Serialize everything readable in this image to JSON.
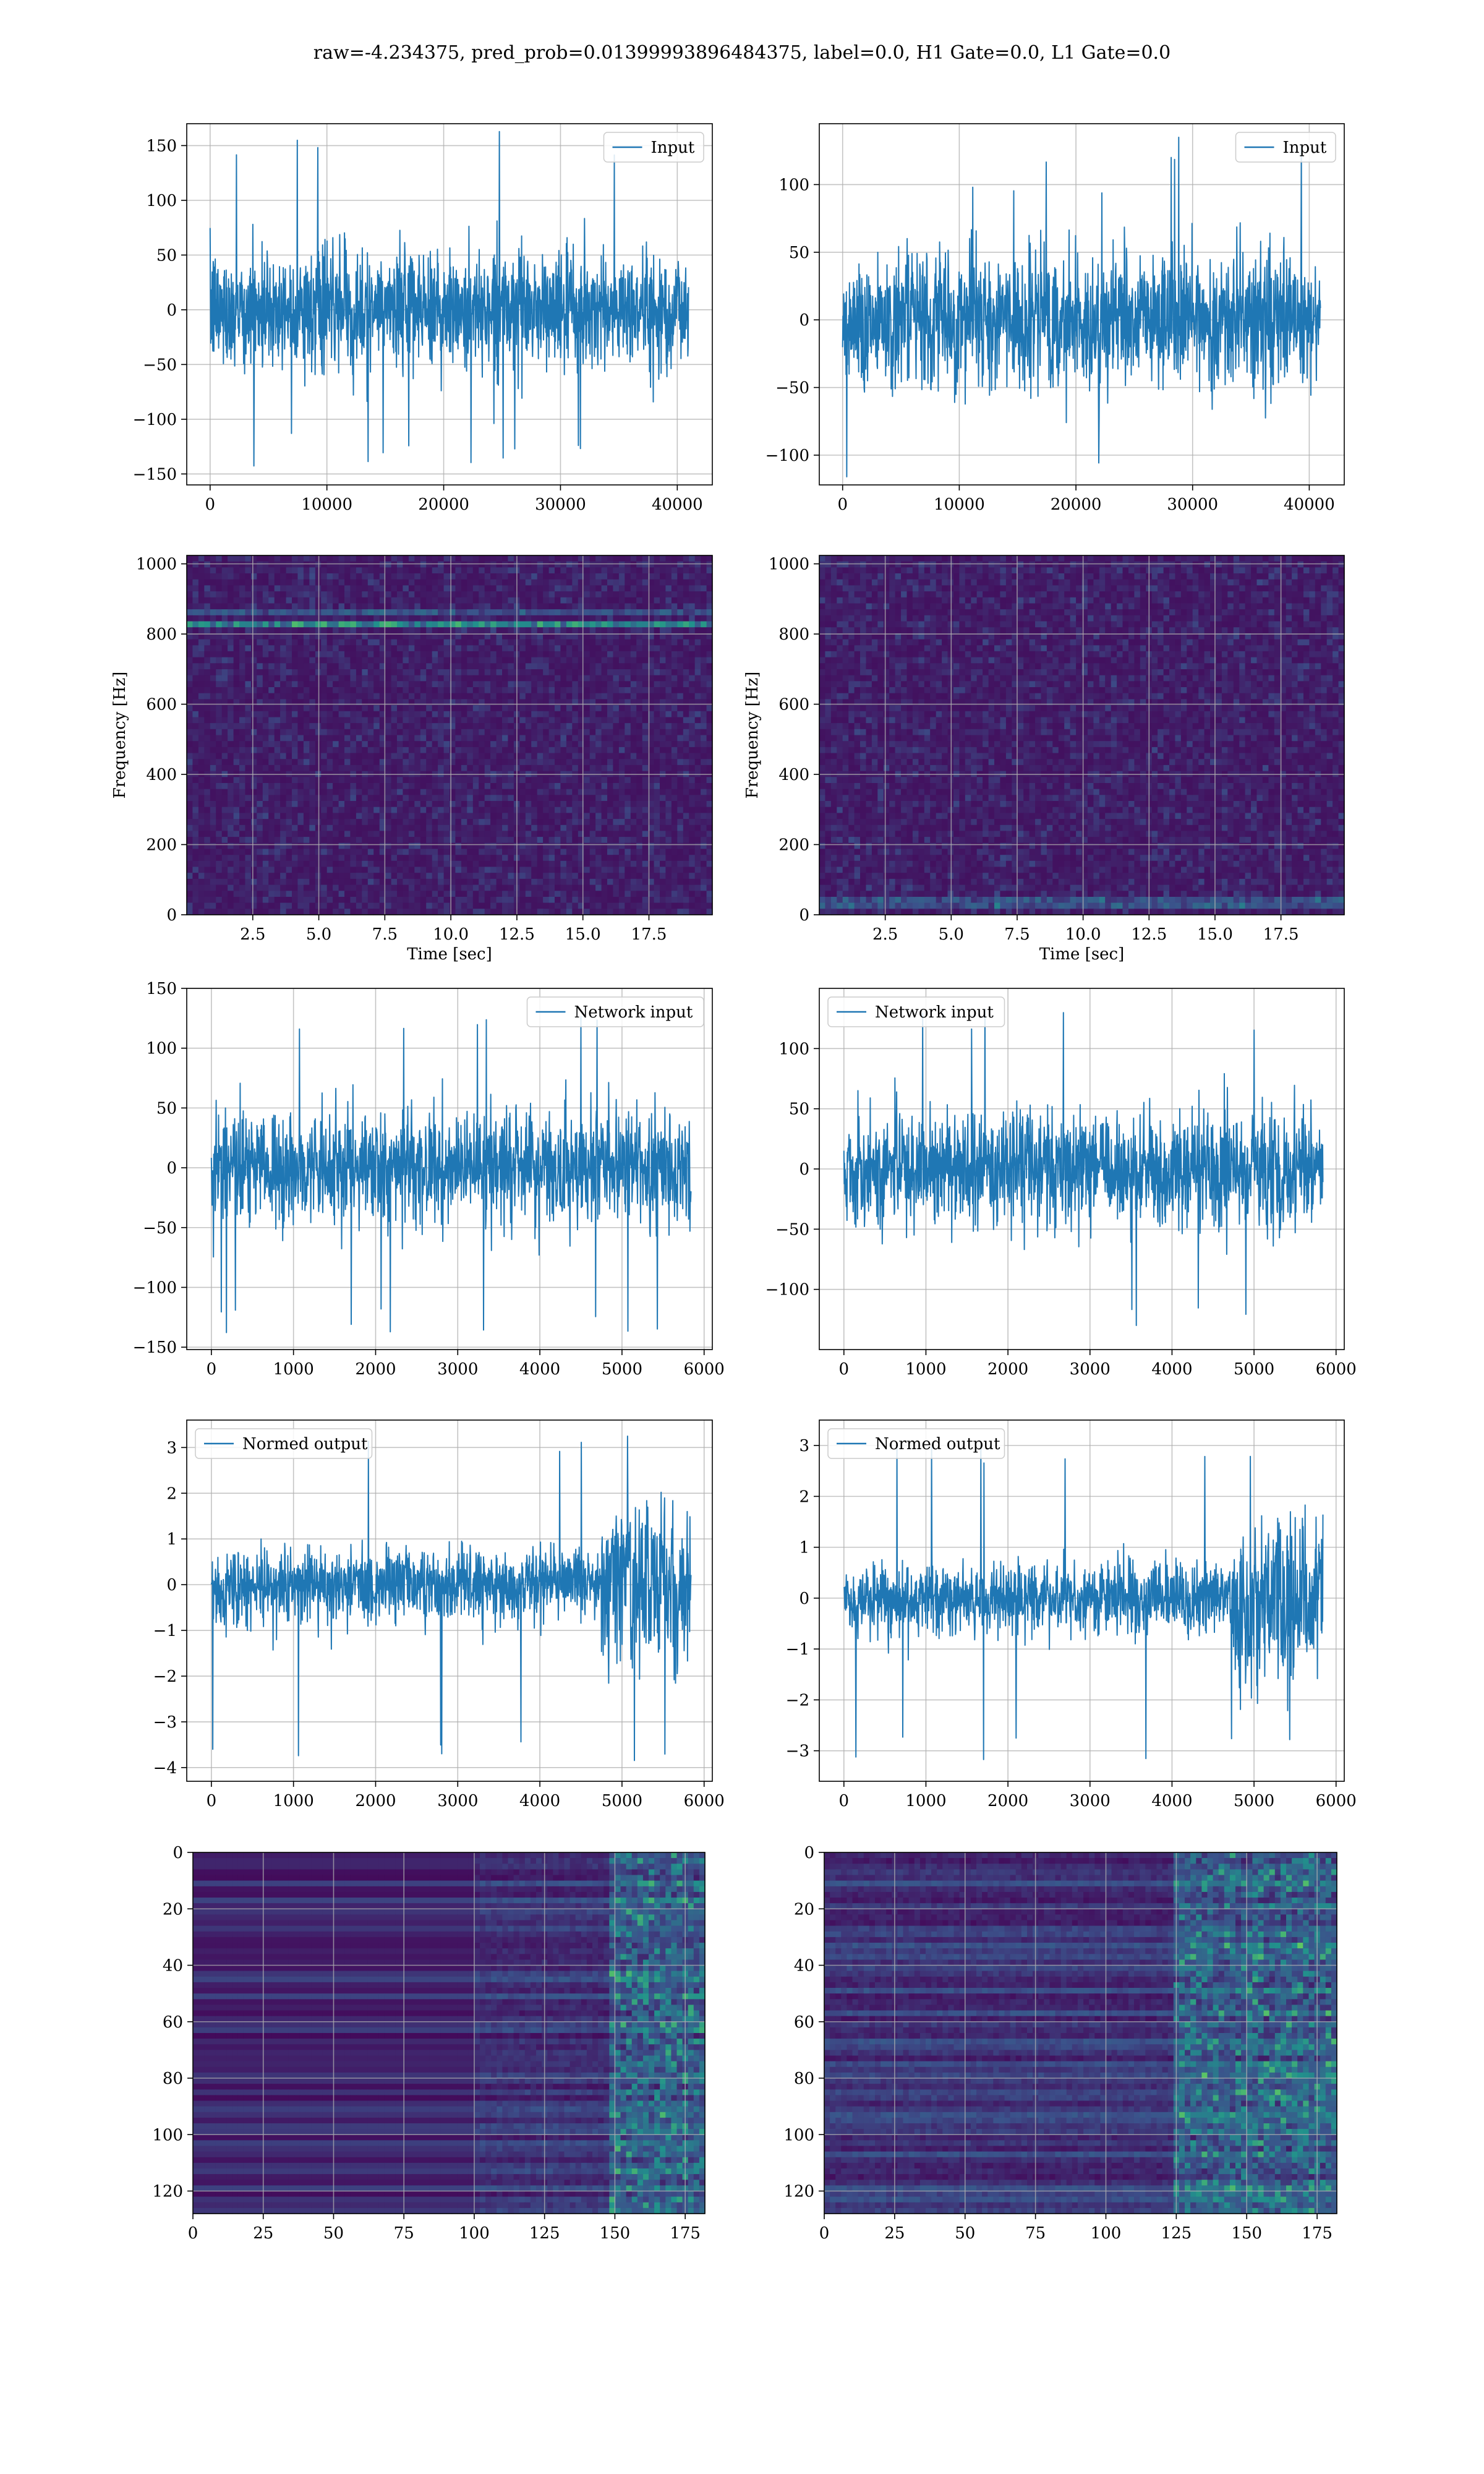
{
  "figure": {
    "title": "raw=-4.234375, pred_prob=0.01399993896484375, label=0.0, H1 Gate=0.0, L1 Gate=0.0"
  },
  "colors": {
    "line": "#1f77b4",
    "grid": "#b0b0b0",
    "viridis_dark": "#440154",
    "viridis_mid": "#21918c",
    "viridis_bright": "#fde725"
  },
  "chart_data": [
    {
      "panel": "row1-left",
      "type": "line",
      "legend": [
        "Input"
      ],
      "legend_loc": "upper right",
      "xlim": [
        -2000,
        43000
      ],
      "ylim": [
        -160,
        170
      ],
      "xticks": [
        0,
        10000,
        20000,
        30000,
        40000
      ],
      "yticks": [
        -150,
        -100,
        -50,
        0,
        50,
        100,
        150
      ],
      "series": [
        {
          "name": "Input",
          "x_range": [
            0,
            40960
          ],
          "envelope_mean": [
            -70,
            70
          ],
          "envelope_peak": [
            -145,
            165
          ]
        }
      ],
      "grid": true
    },
    {
      "panel": "row1-right",
      "type": "line",
      "legend": [
        "Input"
      ],
      "legend_loc": "upper right",
      "xlim": [
        -2000,
        43000
      ],
      "ylim": [
        -122,
        145
      ],
      "xticks": [
        0,
        10000,
        20000,
        30000,
        40000
      ],
      "yticks": [
        -100,
        -50,
        0,
        50,
        100
      ],
      "series": [
        {
          "name": "Input",
          "x_range": [
            0,
            40960
          ],
          "envelope_mean": [
            -65,
            65
          ],
          "envelope_peak": [
            -118,
            135
          ]
        }
      ],
      "grid": true
    },
    {
      "panel": "row2-left",
      "type": "heatmap",
      "xlabel": "Time [sec]",
      "ylabel": "Frequency [Hz]",
      "xlim": [
        0,
        19.9
      ],
      "ylim": [
        0,
        1024
      ],
      "xticks": [
        2.5,
        5.0,
        7.5,
        10.0,
        12.5,
        15.0,
        17.5
      ],
      "yticks": [
        0,
        200,
        400,
        600,
        800,
        1000
      ],
      "features": [
        {
          "kind": "spectral-line",
          "frequency": 830,
          "strength": "strong"
        },
        {
          "kind": "spectral-line",
          "frequency": 860,
          "strength": "weak"
        }
      ],
      "grid": true
    },
    {
      "panel": "row2-right",
      "type": "heatmap",
      "xlabel": "Time [sec]",
      "ylabel": "Frequency [Hz]",
      "xlim": [
        0,
        19.9
      ],
      "ylim": [
        0,
        1024
      ],
      "xticks": [
        2.5,
        5.0,
        7.5,
        10.0,
        12.5,
        15.0,
        17.5
      ],
      "yticks": [
        0,
        200,
        400,
        600,
        800,
        1000
      ],
      "features": [
        {
          "kind": "spectral-line",
          "frequency": 30,
          "strength": "weak"
        }
      ],
      "grid": true
    },
    {
      "panel": "row3-left",
      "type": "line",
      "legend": [
        "Network input"
      ],
      "legend_loc": "upper right",
      "xlim": [
        -300,
        6100
      ],
      "ylim": [
        -152,
        150
      ],
      "xticks": [
        0,
        1000,
        2000,
        3000,
        4000,
        5000,
        6000
      ],
      "yticks": [
        -150,
        -100,
        -50,
        0,
        50,
        100,
        150
      ],
      "series": [
        {
          "name": "Network input",
          "x_range": [
            0,
            5840
          ],
          "envelope_mean": [
            -60,
            60
          ],
          "envelope_peak": [
            -138,
            136
          ]
        }
      ],
      "grid": true
    },
    {
      "panel": "row3-right",
      "type": "line",
      "legend": [
        "Network input"
      ],
      "legend_loc": "upper left",
      "xlim": [
        -300,
        6100
      ],
      "ylim": [
        -150,
        150
      ],
      "xticks": [
        0,
        1000,
        2000,
        3000,
        4000,
        5000,
        6000
      ],
      "yticks": [
        -100,
        -50,
        0,
        50,
        100
      ],
      "series": [
        {
          "name": "Network input",
          "x_range": [
            0,
            5840
          ],
          "envelope_mean": [
            -60,
            60
          ],
          "envelope_peak": [
            -135,
            133
          ]
        }
      ],
      "grid": true
    },
    {
      "panel": "row4-left",
      "type": "line",
      "legend": [
        "Normed output"
      ],
      "legend_loc": "upper left",
      "xlim": [
        -300,
        6100
      ],
      "ylim": [
        -4.3,
        3.6
      ],
      "xticks": [
        0,
        1000,
        2000,
        3000,
        4000,
        5000,
        6000
      ],
      "yticks": [
        -4,
        -3,
        -2,
        -1,
        0,
        1,
        2,
        3
      ],
      "series": [
        {
          "name": "Normed output",
          "x_range": [
            0,
            5840
          ],
          "envelope_mean": [
            -1.0,
            1.0
          ],
          "burst_start": 4750,
          "envelope_peak": [
            -3.9,
            3.3
          ]
        }
      ],
      "grid": true
    },
    {
      "panel": "row4-right",
      "type": "line",
      "legend": [
        "Normed output"
      ],
      "legend_loc": "upper left",
      "xlim": [
        -300,
        6100
      ],
      "ylim": [
        -3.6,
        3.5
      ],
      "xticks": [
        0,
        1000,
        2000,
        3000,
        4000,
        5000,
        6000
      ],
      "yticks": [
        -3,
        -2,
        -1,
        0,
        1,
        2,
        3
      ],
      "series": [
        {
          "name": "Normed output",
          "x_range": [
            0,
            5840
          ],
          "envelope_mean": [
            -0.9,
            0.9
          ],
          "burst_start": 4750,
          "envelope_peak": [
            -3.2,
            3.1
          ]
        }
      ],
      "grid": true
    },
    {
      "panel": "row5-left",
      "type": "heatmap",
      "xlim": [
        0,
        182
      ],
      "ylim": [
        128,
        0
      ],
      "xticks": [
        0,
        25,
        50,
        75,
        100,
        125,
        150,
        175
      ],
      "yticks": [
        0,
        20,
        40,
        60,
        80,
        100,
        120
      ],
      "activity_onset": 100,
      "strong_from": 148,
      "grid": true
    },
    {
      "panel": "row5-right",
      "type": "heatmap",
      "xlim": [
        0,
        182
      ],
      "ylim": [
        128,
        0
      ],
      "xticks": [
        0,
        25,
        50,
        75,
        100,
        125,
        150,
        175
      ],
      "yticks": [
        0,
        20,
        40,
        60,
        80,
        100,
        120
      ],
      "activity_onset": 0,
      "strong_from": 125,
      "grid": true
    }
  ]
}
